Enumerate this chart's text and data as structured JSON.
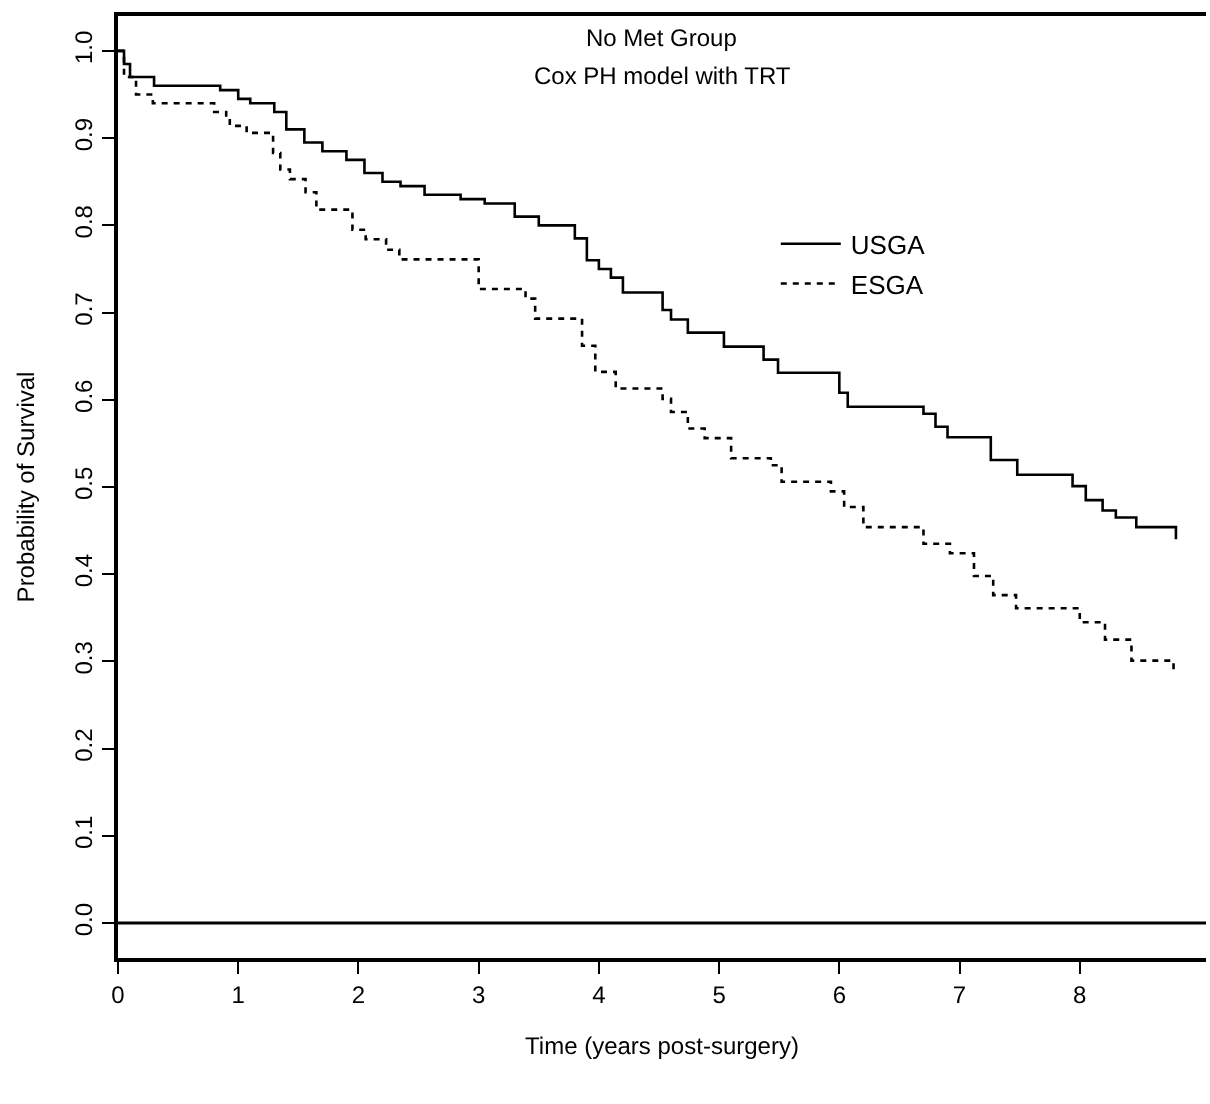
{
  "chart_data": {
    "type": "step",
    "title": "No Met Group",
    "subtitle": "Cox PH model with TRT",
    "xlabel": "Time (years post-surgery)",
    "ylabel": "Probability of Survival",
    "xlim": [
      0,
      9.05
    ],
    "ylim": [
      -0.04,
      1.04
    ],
    "xticks": [
      0,
      1,
      2,
      3,
      4,
      5,
      6,
      7,
      8
    ],
    "yticks": [
      {
        "value": 0,
        "label": "0.0"
      },
      {
        "value": 0.1,
        "label": "0.1"
      },
      {
        "value": 0.2,
        "label": "0.2"
      },
      {
        "value": 0.3,
        "label": "0.3"
      },
      {
        "value": 0.4,
        "label": "0.4"
      },
      {
        "value": 0.5,
        "label": "0.5"
      },
      {
        "value": 0.6,
        "label": "0.6"
      },
      {
        "value": 0.7,
        "label": "0.7"
      },
      {
        "value": 0.8,
        "label": "0.8"
      },
      {
        "value": 0.9,
        "label": "0.9"
      },
      {
        "value": 1.0,
        "label": "1.0"
      }
    ],
    "legend": "top right",
    "marker": "none",
    "ref_lines": [
      {
        "axis": "y",
        "value": 0,
        "color": "#000000",
        "line_style": "solid"
      }
    ],
    "series": [
      {
        "name": "USGA",
        "color": "#000000",
        "line_style": "solid",
        "x": [
          0,
          0.05,
          0.1,
          0.3,
          0.85,
          1.0,
          1.1,
          1.3,
          1.4,
          1.55,
          1.7,
          1.9,
          2.05,
          2.2,
          2.35,
          2.55,
          2.85,
          3.05,
          3.3,
          3.5,
          3.8,
          3.9,
          4.0,
          4.1,
          4.2,
          4.53,
          4.6,
          4.74,
          5.04,
          5.37,
          5.49,
          6.0,
          6.07,
          6.7,
          6.8,
          6.9,
          7.06,
          7.26,
          7.48,
          7.94,
          8.05,
          8.19,
          8.3,
          8.47,
          8.79,
          8.8
        ],
        "values": [
          1.0,
          0.985,
          0.97,
          0.96,
          0.955,
          0.945,
          0.94,
          0.93,
          0.91,
          0.895,
          0.885,
          0.875,
          0.86,
          0.85,
          0.845,
          0.835,
          0.83,
          0.825,
          0.81,
          0.8,
          0.785,
          0.76,
          0.75,
          0.74,
          0.723,
          0.703,
          0.692,
          0.677,
          0.661,
          0.646,
          0.631,
          0.608,
          0.592,
          0.584,
          0.569,
          0.557,
          0.557,
          0.531,
          0.514,
          0.501,
          0.485,
          0.473,
          0.465,
          0.454,
          0.454,
          0.44
        ]
      },
      {
        "name": "ESGA",
        "color": "#000000",
        "line_style": "dotted",
        "x": [
          0,
          0.05,
          0.15,
          0.29,
          0.8,
          0.9,
          0.93,
          1.07,
          1.29,
          1.35,
          1.43,
          1.56,
          1.65,
          1.95,
          2.06,
          2.23,
          2.34,
          3.0,
          3.39,
          3.47,
          3.86,
          3.97,
          4.14,
          4.53,
          4.6,
          4.74,
          4.88,
          5.1,
          5.43,
          5.52,
          5.93,
          6.04,
          6.2,
          6.7,
          6.92,
          7.12,
          7.28,
          7.47,
          8.0,
          8.21,
          8.43,
          8.77,
          8.78
        ],
        "values": [
          1.0,
          0.97,
          0.95,
          0.94,
          0.93,
          0.926,
          0.914,
          0.906,
          0.883,
          0.864,
          0.853,
          0.838,
          0.818,
          0.795,
          0.784,
          0.772,
          0.761,
          0.727,
          0.716,
          0.693,
          0.662,
          0.632,
          0.613,
          0.601,
          0.586,
          0.567,
          0.556,
          0.533,
          0.525,
          0.506,
          0.495,
          0.477,
          0.454,
          0.435,
          0.424,
          0.398,
          0.376,
          0.361,
          0.345,
          0.325,
          0.301,
          0.301,
          0.29
        ]
      }
    ]
  }
}
